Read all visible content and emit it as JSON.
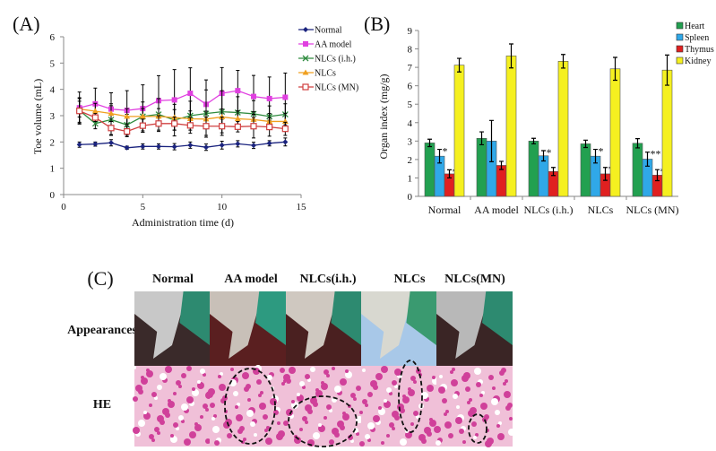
{
  "chart_data": [
    {
      "panel_label": "(A)",
      "type": "line",
      "xlabel": "Administration time (d)",
      "ylabel": "Toe volume (mL)",
      "xlim": [
        0,
        15
      ],
      "ylim": [
        0,
        6
      ],
      "xticks": [
        0,
        5,
        10,
        15
      ],
      "yticks": [
        0,
        1,
        2,
        3,
        4,
        5,
        6
      ],
      "grid": false,
      "legend_position": "top-right",
      "x": [
        1,
        2,
        3,
        4,
        5,
        6,
        7,
        8,
        9,
        10,
        11,
        12,
        13,
        14
      ],
      "series": [
        {
          "name": "Normal",
          "color": "#1a237e",
          "marker": "diamond",
          "values": [
            1.9,
            1.92,
            1.97,
            1.78,
            1.83,
            1.83,
            1.82,
            1.88,
            1.8,
            1.88,
            1.93,
            1.87,
            1.95,
            2.0
          ],
          "errors": [
            0.1,
            0.08,
            0.12,
            0.06,
            0.1,
            0.1,
            0.12,
            0.12,
            0.12,
            0.15,
            0.12,
            0.12,
            0.1,
            0.15
          ]
        },
        {
          "name": "AA model",
          "color": "#e040e0",
          "marker": "square",
          "values": [
            3.3,
            3.45,
            3.25,
            3.2,
            3.27,
            3.57,
            3.6,
            3.85,
            3.43,
            3.85,
            3.95,
            3.73,
            3.65,
            3.7
          ],
          "errors": [
            0.6,
            0.6,
            0.62,
            0.75,
            0.9,
            0.95,
            1.15,
            0.97,
            0.93,
            0.98,
            0.77,
            0.8,
            0.82,
            0.92
          ]
        },
        {
          "name": "NLCs (i.h.)",
          "color": "#2e8b3e",
          "marker": "x",
          "values": [
            3.2,
            2.7,
            2.85,
            2.65,
            2.97,
            3.05,
            2.83,
            3.0,
            3.08,
            3.15,
            3.12,
            3.07,
            2.97,
            3.05
          ],
          "errors": [
            0.45,
            0.2,
            0.6,
            0.4,
            0.55,
            0.6,
            0.6,
            0.55,
            0.9,
            0.8,
            0.6,
            0.5,
            0.4,
            0.4
          ]
        },
        {
          "name": "NLCs",
          "color": "#f0a020",
          "marker": "triangle",
          "values": [
            3.25,
            3.17,
            3.08,
            2.97,
            2.97,
            2.97,
            2.93,
            2.88,
            2.87,
            2.95,
            2.88,
            2.85,
            2.78,
            2.78
          ],
          "errors": [
            0.3,
            0.3,
            0.3,
            0.3,
            0.3,
            0.3,
            0.3,
            0.3,
            0.3,
            0.3,
            0.3,
            0.3,
            0.3,
            0.3
          ]
        },
        {
          "name": "NLCs (MN)",
          "color": "#d04040",
          "marker": "open-square",
          "values": [
            3.18,
            2.93,
            2.53,
            2.4,
            2.62,
            2.7,
            2.7,
            2.63,
            2.6,
            2.6,
            2.58,
            2.6,
            2.57,
            2.5
          ],
          "errors": [
            0.5,
            0.15,
            0.25,
            0.2,
            0.25,
            0.3,
            0.25,
            0.3,
            0.35,
            0.35,
            0.2,
            0.45,
            0.35,
            0.25
          ]
        }
      ]
    },
    {
      "panel_label": "(B)",
      "type": "bar",
      "xlabel": "",
      "ylabel": "Organ  index (mg/g)",
      "ylim": [
        0,
        9
      ],
      "yticks": [
        0,
        1,
        2,
        3,
        4,
        5,
        6,
        7,
        8,
        9
      ],
      "grid": false,
      "legend_position": "top-right",
      "categories": [
        "Normal",
        "AA model",
        "NLCs (i.h.)",
        "NLCs",
        "NLCs (MN)"
      ],
      "series": [
        {
          "name": "Heart",
          "color": "#22a050",
          "values": [
            2.9,
            3.15,
            3.0,
            2.85,
            2.88
          ],
          "errors": [
            0.2,
            0.35,
            0.15,
            0.2,
            0.25
          ],
          "annotations": [
            "",
            "",
            "",
            "",
            ""
          ]
        },
        {
          "name": "Spleen",
          "color": "#30a8e8",
          "values": [
            2.18,
            3.0,
            2.2,
            2.18,
            2.02
          ],
          "errors": [
            0.37,
            1.12,
            0.28,
            0.37,
            0.38
          ],
          "annotations": [
            "*",
            "",
            "*",
            "*",
            "**"
          ]
        },
        {
          "name": "Thymus",
          "color": "#e02020",
          "values": [
            1.22,
            1.68,
            1.35,
            1.22,
            1.15
          ],
          "errors": [
            0.22,
            0.22,
            0.22,
            0.35,
            0.3
          ],
          "annotations": [
            "*",
            "",
            "",
            "*",
            "**"
          ]
        },
        {
          "name": "Kidney",
          "color": "#f5f020",
          "values": [
            7.12,
            7.62,
            7.33,
            6.92,
            6.85
          ],
          "errors": [
            0.37,
            0.65,
            0.37,
            0.62,
            0.82
          ],
          "annotations": [
            "",
            "",
            "",
            "",
            ""
          ]
        }
      ]
    }
  ],
  "panel_c": {
    "label": "(C)",
    "columns": [
      "Normal",
      "AA model",
      "NLCs(i.h.)",
      "NLCs",
      "NLCs(MN)"
    ],
    "rows": [
      "Appearances",
      "HE"
    ]
  }
}
